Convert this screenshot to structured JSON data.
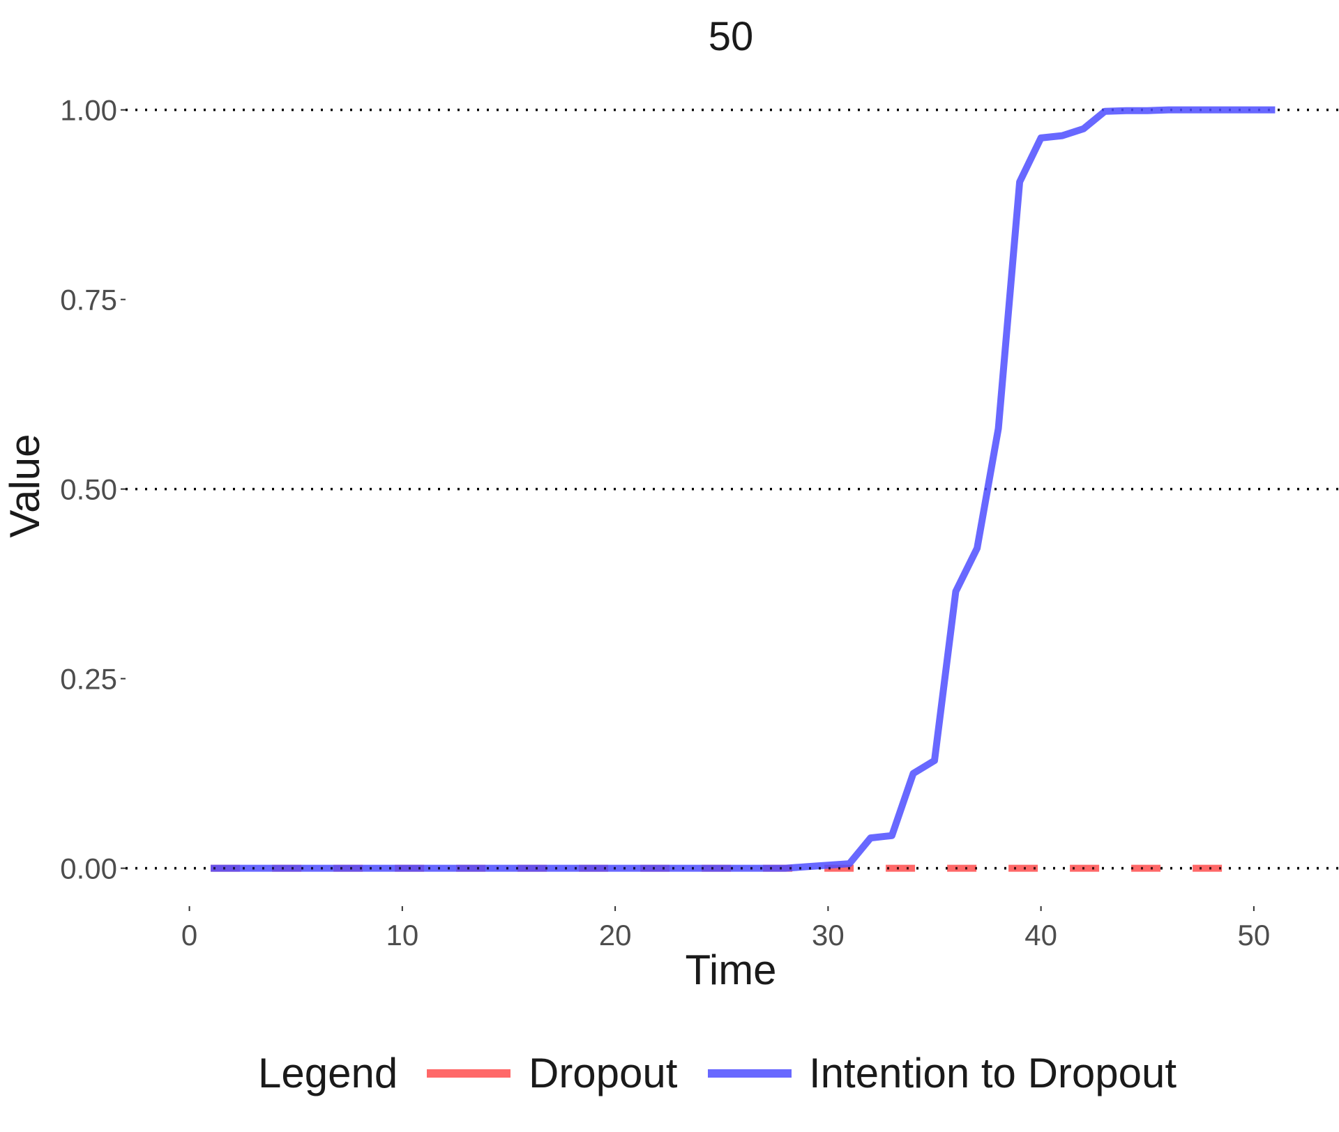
{
  "chart_data": {
    "type": "line",
    "title": "50",
    "xlabel": "Time",
    "ylabel": "Value",
    "xlim": [
      -3,
      54
    ],
    "ylim": [
      -0.05,
      1.03
    ],
    "xticks": [
      0,
      10,
      20,
      30,
      40,
      50
    ],
    "yticks": [
      0,
      0.25,
      0.5,
      0.75,
      1.0
    ],
    "ytick_labels": [
      "0.00",
      "0.25",
      "0.50",
      "0.75",
      "1.00"
    ],
    "hlines": [
      0,
      0.5,
      1.0
    ],
    "grid": false,
    "legend": {
      "title": "Legend",
      "position": "bottom"
    },
    "series": [
      {
        "name": "Dropout",
        "color": "#ff4d4d",
        "dash": "dashed",
        "x": [
          1,
          2,
          3,
          4,
          5,
          6,
          7,
          8,
          9,
          10,
          11,
          12,
          13,
          14,
          15,
          16,
          17,
          18,
          19,
          20,
          21,
          22,
          23,
          24,
          25,
          26,
          27,
          28,
          29,
          30,
          31,
          32,
          33,
          34,
          35,
          36,
          37,
          38,
          39,
          40,
          41,
          42,
          43,
          44,
          45,
          46,
          47,
          48,
          49,
          50
        ],
        "values": [
          0,
          0,
          0,
          0,
          0,
          0,
          0,
          0,
          0,
          0,
          0,
          0,
          0,
          0,
          0,
          0,
          0,
          0,
          0,
          0,
          0,
          0,
          0,
          0,
          0,
          0,
          0,
          0,
          0,
          0,
          0,
          0,
          0,
          0,
          0,
          0,
          0,
          0,
          0,
          0,
          0,
          0,
          0,
          0,
          0,
          0,
          0,
          0,
          0,
          0
        ]
      },
      {
        "name": "Intention to Dropout",
        "color": "#4d4dff",
        "dash": "solid",
        "x": [
          1,
          2,
          3,
          4,
          5,
          6,
          7,
          8,
          9,
          10,
          11,
          12,
          13,
          14,
          15,
          16,
          17,
          18,
          19,
          20,
          21,
          22,
          23,
          24,
          25,
          26,
          27,
          28,
          29,
          30,
          31,
          32,
          33,
          34,
          35,
          36,
          37,
          38,
          39,
          40,
          41,
          42,
          43,
          44,
          45,
          46,
          47,
          48,
          49,
          50,
          51
        ],
        "values": [
          0,
          0,
          0,
          0,
          0,
          0,
          0,
          0,
          0,
          0,
          0,
          0,
          0,
          0,
          0,
          0,
          0,
          0,
          0,
          0,
          0,
          0,
          0,
          0,
          0,
          0,
          0,
          0,
          0.002,
          0.004,
          0.006,
          0.04,
          0.043,
          0.125,
          0.142,
          0.365,
          0.422,
          0.58,
          0.905,
          0.963,
          0.966,
          0.975,
          0.998,
          0.999,
          0.999,
          1,
          1,
          1,
          1,
          1,
          1
        ]
      }
    ]
  }
}
